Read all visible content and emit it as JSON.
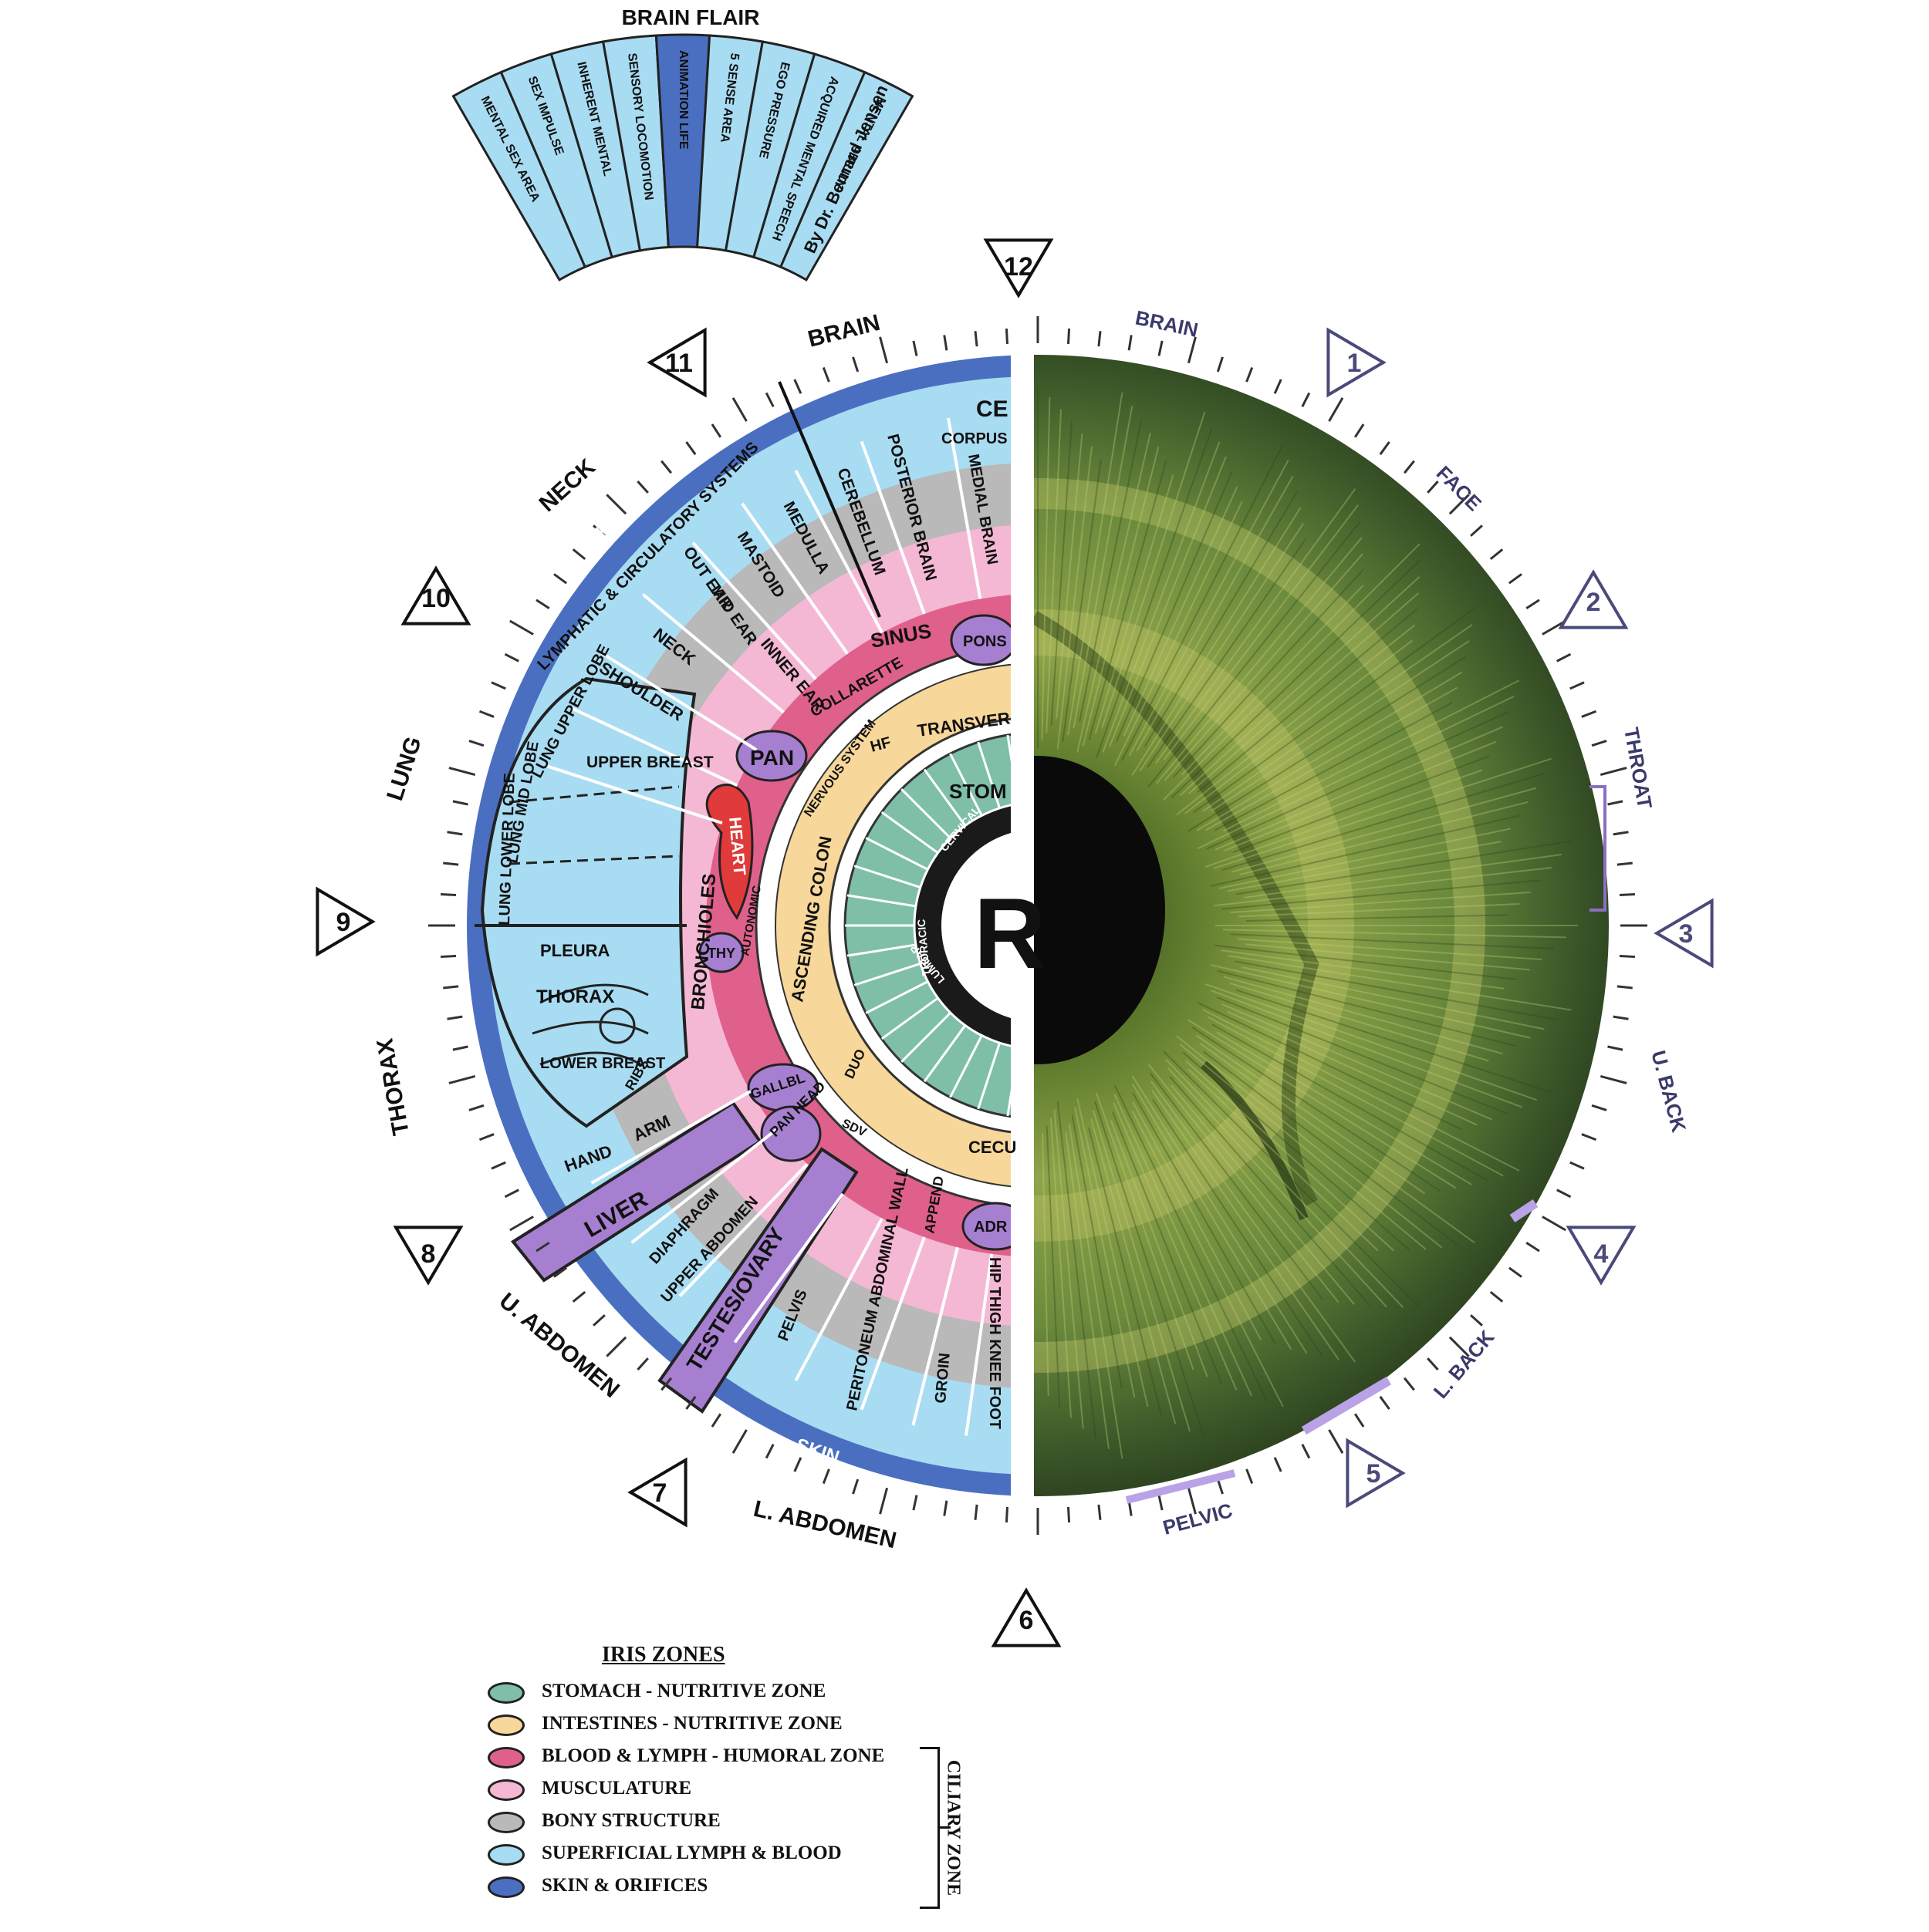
{
  "brain_flair": {
    "title": "BRAIN FLAIR",
    "segments": [
      "MENTAL SEX AREA",
      "SEX IMPULSE",
      "INHERENT MENTAL",
      "SENSORY LOCOMOTION",
      "ANIMATION LIFE",
      "5 SENSE AREA",
      "EGO PRESSURE",
      "ACQUIRED MENTAL SPEECH",
      "MENTAL ABILITY"
    ],
    "credit": "By Dr. Bernard Jensen"
  },
  "clock_markers": {
    "left": [
      "12",
      "11",
      "10",
      "9",
      "8",
      "7",
      "6"
    ],
    "right": [
      "1",
      "2",
      "3",
      "4",
      "5"
    ]
  },
  "outer_labels_left": [
    "BRAIN",
    "NECK",
    "LUNG",
    "THORAX",
    "U. ABDOMEN",
    "L. ABDOMEN"
  ],
  "outer_labels_right": [
    "BRAIN",
    "FACE",
    "THROAT",
    "U. BACK",
    "L. BACK",
    "PELVIC"
  ],
  "ring_labels": {
    "skin_top": "SKIN",
    "skin_bottom": "SKIN",
    "lymphatic": "LYMPHATIC & CIRCULATORY SYSTEMS"
  },
  "chart_labels": {
    "cerebrum": "CE",
    "corpus": "CORPUS",
    "medial_brain": "MEDIAL BRAIN",
    "posterior_brain": "POSTERIOR BRAIN",
    "cerebellum": "CEREBELLUM",
    "medulla": "MEDULLA",
    "mastoid": "MASTOID",
    "out_ear": "OUT EAR",
    "mid_ear": "MID EAR",
    "inner_ear": "INNER EAR",
    "neck": "NECK",
    "shoulder": "SHOULDER",
    "sinus": "SINUS",
    "pons": "PONS",
    "collarette": "COLLARETTE",
    "pan": "PAN",
    "lung_upper": "LUNG UPPER LOBE",
    "upper_breast": "UPPER BREAST",
    "lung_mid": "LUNG MID LOBE",
    "lung_lower": "LUNG LOWER LOBE",
    "bronchioles": "BRONCHIOLES",
    "heart": "HEART",
    "thy": "THY",
    "pleura": "PLEURA",
    "thorax": "THORAX",
    "lower_breast": "LOWER BREAST",
    "ribs": "RIBS",
    "hand": "HAND",
    "arm": "ARM",
    "liver": "LIVER",
    "gallbl": "GALLBL",
    "pan_head": "PAN HEAD",
    "diaphragm": "DIAPHRAGM",
    "upper_abdomen": "UPPER ABDOMEN",
    "testes": "TESTES/OVARY",
    "pelvis": "PELVIS",
    "peritoneum": "PERITONEUM ABDOMINAL WALL",
    "groin": "GROIN",
    "hip": "HIP THIGH KNEE FOOT",
    "append": "APPEND",
    "adr": "ADR",
    "cecum": "CECU",
    "transverse": "TRANSVER",
    "hf": "HF",
    "nervous": "NERVOUS SYSTEM",
    "ascending": "ASCENDING COLON",
    "autonomic": "AUTONOMIC",
    "duo": "DUO",
    "sdv": "SDV",
    "stomach": "STOM",
    "cervical": "CERVICAL",
    "thoracic": "THORACIC",
    "lumbar": "LUMBAR",
    "center": "R"
  },
  "legend": {
    "title": "IRIS ZONES",
    "items": [
      {
        "label": "STOMACH - NUTRITIVE ZONE",
        "color": "#7fbfa8"
      },
      {
        "label": "INTESTINES - NUTRITIVE ZONE",
        "color": "#f7d79a"
      },
      {
        "label": "BLOOD & LYMPH - HUMORAL ZONE",
        "color": "#e0608c"
      },
      {
        "label": "MUSCULATURE",
        "color": "#f5b8d4"
      },
      {
        "label": "BONY STRUCTURE",
        "color": "#b9b9b9"
      },
      {
        "label": "SUPERFICIAL LYMPH & BLOOD",
        "color": "#a8dcf2"
      },
      {
        "label": "SKIN & ORIFICES",
        "color": "#4b6fc0"
      }
    ],
    "bracket_label": "CILIARY ZONE"
  },
  "colors": {
    "skin_ring": "#4b6fc0",
    "lymph": "#a8dcf2",
    "bony": "#b9b9b9",
    "muscle": "#f5b8d4",
    "humoral": "#e0608c",
    "intestine": "#f7d79a",
    "stomach": "#7fbfa8",
    "organ_purple": "#a77fd0",
    "heart": "#e03a3a",
    "iris_dark": "#3f5622",
    "iris_mid": "#6a8a36",
    "iris_light": "#a7b758"
  }
}
